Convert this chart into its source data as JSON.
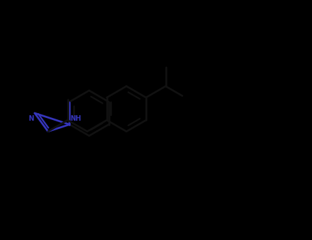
{
  "background_color": "#000000",
  "bond_color": "#111111",
  "nitrogen_color": "#3535bb",
  "line_width": 2.0,
  "figsize": [
    4.55,
    3.5
  ],
  "dpi": 100
}
